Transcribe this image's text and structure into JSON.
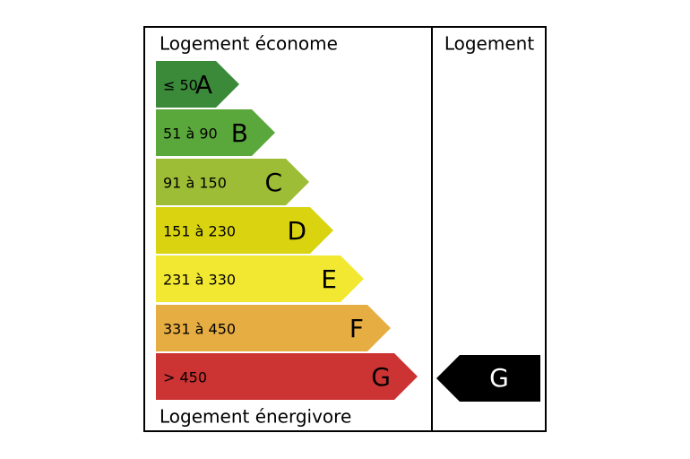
{
  "header": {
    "left_title": "Logement économe",
    "right_title": "Logement"
  },
  "footer": {
    "left_title": "Logement énergivore"
  },
  "classes": [
    {
      "range": "≤ 50",
      "letter": "A",
      "color": "#3a8a3a"
    },
    {
      "range": "51 à 90",
      "letter": "B",
      "color": "#5aa83c"
    },
    {
      "range": "91 à 150",
      "letter": "C",
      "color": "#9ebd36"
    },
    {
      "range": "151 à 230",
      "letter": "D",
      "color": "#dad410"
    },
    {
      "range": "231 à 330",
      "letter": "E",
      "color": "#f2e832"
    },
    {
      "range": "331 à 450",
      "letter": "F",
      "color": "#e6ad42"
    },
    {
      "range": "> 450",
      "letter": "G",
      "color": "#cc3333"
    }
  ],
  "current": {
    "letter": "G",
    "color": "#000000",
    "text_color": "#ffffff"
  }
}
